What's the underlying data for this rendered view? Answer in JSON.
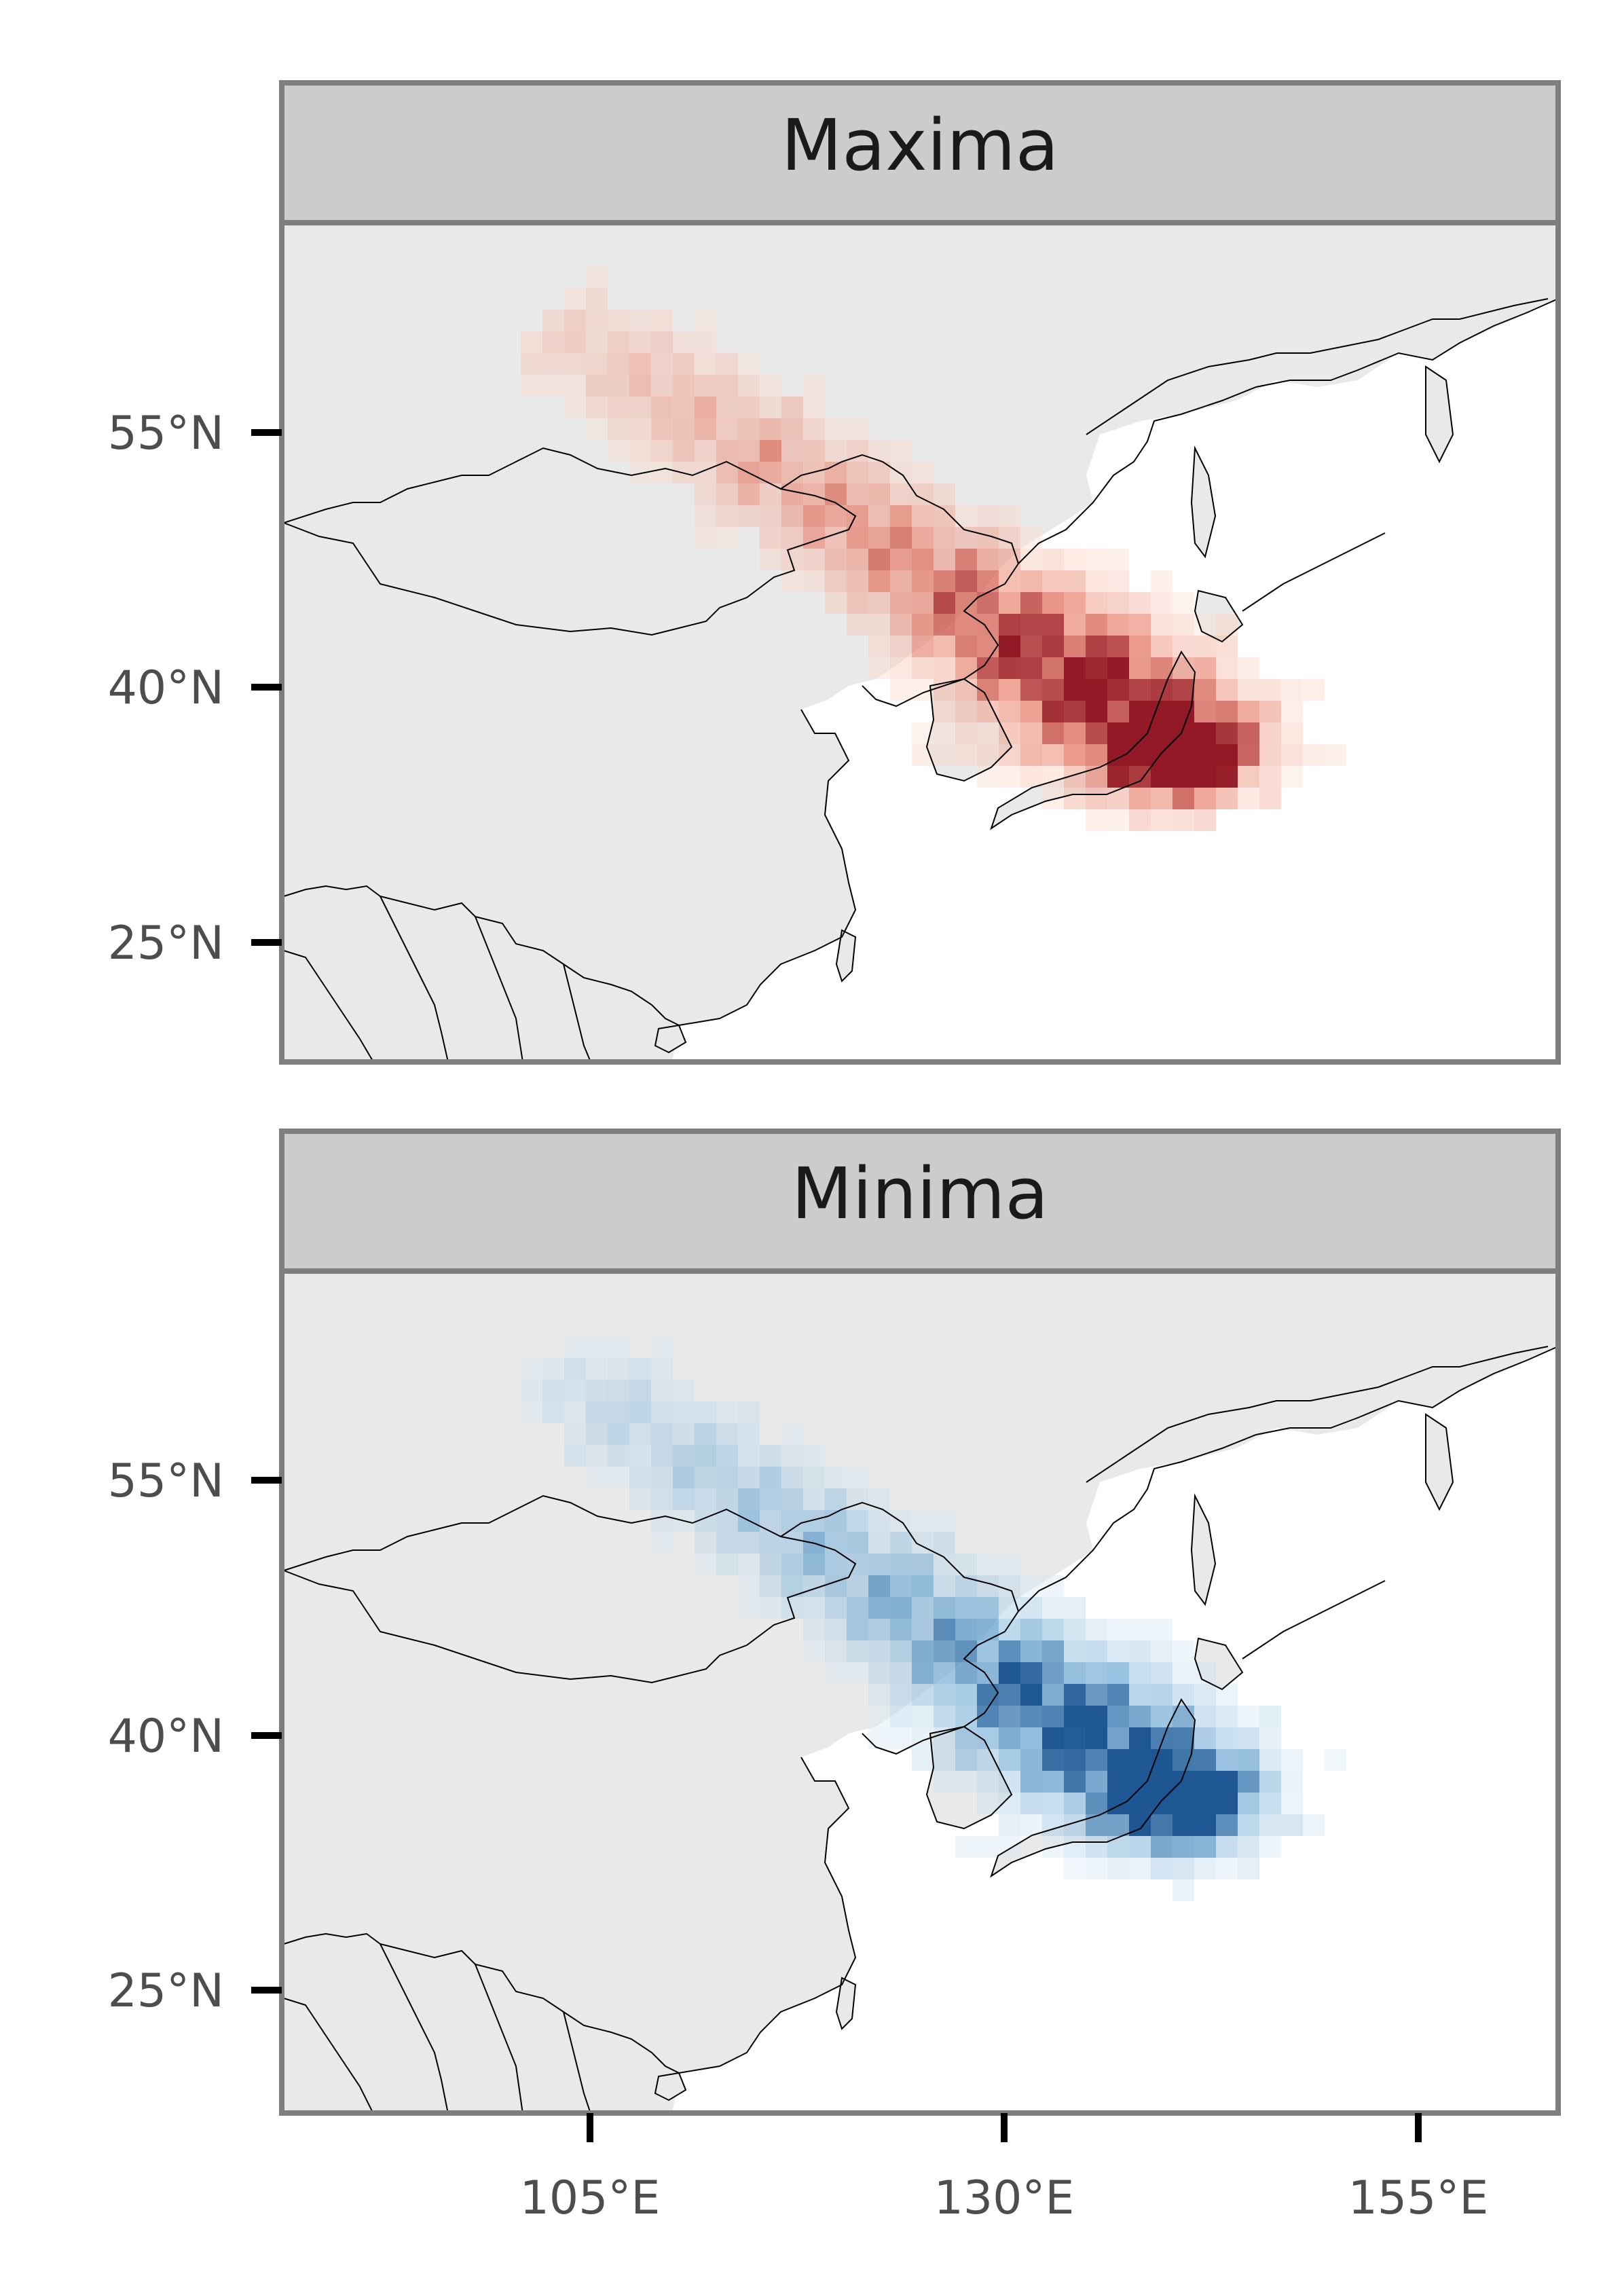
{
  "figure": {
    "panels": [
      {
        "title": "Maxima",
        "palette": "reds",
        "colors": {
          "low": "#fde0d2",
          "mid": "#e4705a",
          "high": "#8e0d1a"
        }
      },
      {
        "title": "Minima",
        "palette": "blues",
        "colors": {
          "low": "#dcebf6",
          "mid": "#6aa6d2",
          "high": "#124e8e"
        }
      }
    ],
    "y_axis": {
      "ticks": [
        "55°N",
        "40°N",
        "25°N"
      ],
      "values": [
        55,
        40,
        25
      ]
    },
    "x_axis": {
      "ticks": [
        "105°E",
        "130°E",
        "155°E"
      ],
      "values": [
        105,
        130,
        155
      ]
    },
    "extent": {
      "lon": [
        86.5,
        163.5
      ],
      "lat": [
        18,
        67
      ]
    },
    "colors": {
      "land": "#e9e9e9",
      "sea": "#ffffff",
      "strip": "#cccccc",
      "frame": "#7f7f7f",
      "coast": "#000000"
    }
  }
}
